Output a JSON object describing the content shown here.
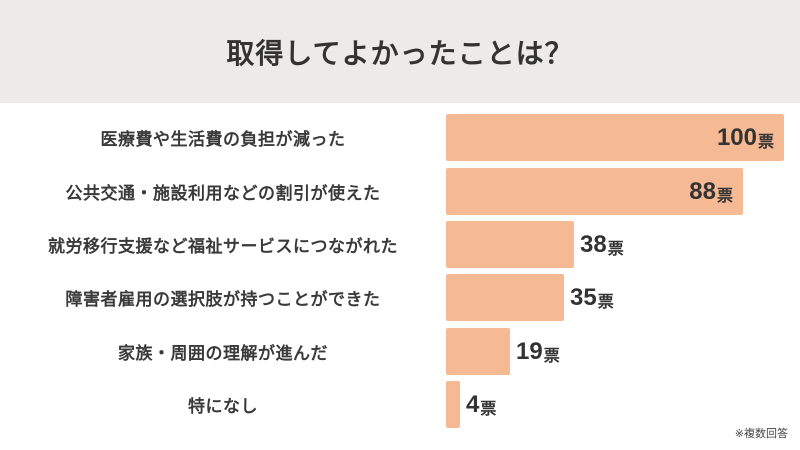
{
  "header": {
    "title": "取得してよかったことは？"
  },
  "unit": "票",
  "note": "※複数回答",
  "colors": {
    "bar": "#f5b994",
    "header_bg": "#ecebe9",
    "text": "#333333"
  },
  "rows": [
    {
      "label": "医療費や生活費の負担が減った",
      "value": "100"
    },
    {
      "label": "公共交通・施設利用などの割引が使えた",
      "value": "88"
    },
    {
      "label": "就労移行支援など福祉サービスにつながれた",
      "value": "38"
    },
    {
      "label": "障害者雇用の選択肢が持つことができた",
      "value": "35"
    },
    {
      "label": "家族・周囲の理解が進んだ",
      "value": "19"
    },
    {
      "label": "特になし",
      "value": "4"
    }
  ],
  "chart_data": {
    "type": "bar",
    "orientation": "horizontal",
    "title": "取得してよかったことは？",
    "categories": [
      "医療費や生活費の負担が減った",
      "公共交通・施設利用などの割引が使えた",
      "就労移行支援など福祉サービスにつながれた",
      "障害者雇用の選択肢が持つことができた",
      "家族・周囲の理解が進んだ",
      "特になし"
    ],
    "values": [
      100,
      88,
      38,
      35,
      19,
      4
    ],
    "value_unit": "票",
    "xlabel": "",
    "ylabel": "",
    "xlim": [
      0,
      100
    ],
    "grid": false,
    "legend": null,
    "annotations": [
      "※複数回答"
    ]
  }
}
